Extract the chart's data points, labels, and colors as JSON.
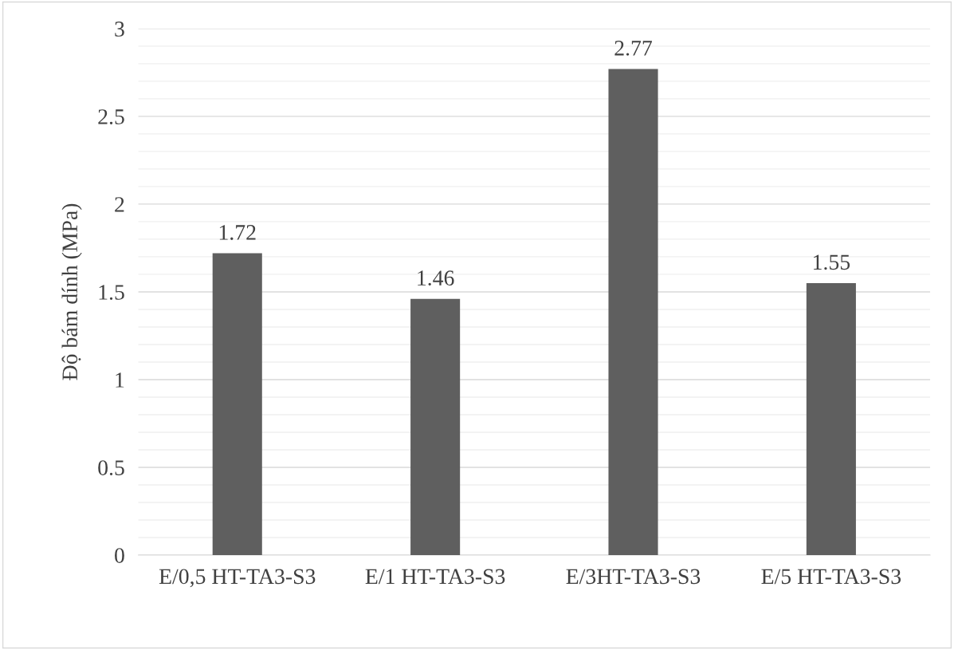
{
  "chart_data": {
    "type": "bar",
    "ylabel": "Độ bám dính (MPa)",
    "categories": [
      "E/0,5 HT-TA3-S3",
      "E/1 HT-TA3-S3",
      "E/3HT-TA3-S3",
      "E/5 HT-TA3-S3"
    ],
    "values": [
      1.72,
      1.46,
      2.77,
      1.55
    ],
    "color": "#5f5f5f",
    "data_labels": true,
    "ylim": [
      0,
      3
    ],
    "yticks": [
      0,
      {
        "value": 0.1,
        "label": null
      },
      {
        "value": 0.2,
        "label": null
      },
      {
        "value": 0.3,
        "label": null
      },
      {
        "value": 0.4,
        "label": null
      },
      0.5,
      {
        "value": 0.6,
        "label": null
      },
      {
        "value": 0.7,
        "label": null
      },
      {
        "value": 0.8,
        "label": null
      },
      {
        "value": 0.9,
        "label": null
      },
      1,
      {
        "value": 1.1,
        "label": null
      },
      {
        "value": 1.2,
        "label": null
      },
      {
        "value": 1.3,
        "label": null
      },
      {
        "value": 1.4,
        "label": null
      },
      1.5,
      {
        "value": 1.6,
        "label": null
      },
      {
        "value": 1.7,
        "label": null
      },
      {
        "value": 1.8,
        "label": null
      },
      {
        "value": 1.9,
        "label": null
      },
      2,
      {
        "value": 2.1,
        "label": null
      },
      {
        "value": 2.2,
        "label": null
      },
      {
        "value": 2.3,
        "label": null
      },
      {
        "value": 2.4,
        "label": null
      },
      2.5,
      {
        "value": 2.6,
        "label": null
      },
      {
        "value": 2.7,
        "label": null
      },
      {
        "value": 2.8,
        "label": null
      },
      {
        "value": 2.9,
        "label": null
      },
      3
    ],
    "grid": "y"
  }
}
